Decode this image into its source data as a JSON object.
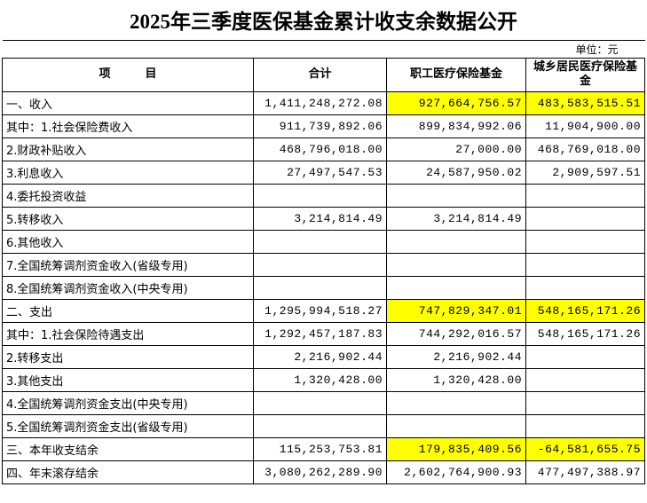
{
  "header": {
    "title": "2025年三季度医保基金累计收支余数据公开",
    "unit": "单位：元"
  },
  "table": {
    "columns": [
      "项　　　目",
      "合计",
      "职工医疗保险基金",
      "城乡居民医疗保险基金"
    ],
    "rows": [
      [
        "一、收入",
        "1,411,248,272.08",
        "927,664,756.57",
        "483,583,515.51"
      ],
      [
        "其中：1.社会保险费收入",
        "911,739,892.06",
        "899,834,992.06",
        "11,904,900.00"
      ],
      [
        "2.财政补贴收入",
        "468,796,018.00",
        "27,000.00",
        "468,769,018.00"
      ],
      [
        "3.利息收入",
        "27,497,547.53",
        "24,587,950.02",
        "2,909,597.51"
      ],
      [
        "4.委托投资收益",
        null,
        null,
        null
      ],
      [
        "5.转移收入",
        "3,214,814.49",
        "3,214,814.49",
        null
      ],
      [
        "6.其他收入",
        null,
        null,
        null
      ],
      [
        "7.全国统筹调剂资金收入(省级专用)",
        null,
        null,
        null
      ],
      [
        "8.全国统筹调剂资金收入(中央专用)",
        null,
        null,
        null
      ],
      [
        "二、支出",
        "1,295,994,518.27",
        "747,829,347.01",
        "548,165,171.26"
      ],
      [
        "其中：1.社会保险待遇支出",
        "1,292,457,187.83",
        "744,292,016.57",
        "548,165,171.26"
      ],
      [
        "2.转移支出",
        "2,216,902.44",
        "2,216,902.44",
        null
      ],
      [
        "3.其他支出",
        "1,320,428.00",
        "1,320,428.00",
        null
      ],
      [
        "4.全国统筹调剂资金支出(中央专用)",
        null,
        null,
        null
      ],
      [
        "5.全国统筹调剂资金支出(省级专用)",
        null,
        null,
        null
      ],
      [
        "三、本年收支结余",
        "115,253,753.81",
        "179,835,409.56",
        "-64,581,655.75"
      ],
      [
        "四、年末滚存结余",
        "3,080,262,289.90",
        "2,602,764,900.93",
        "477,497,388.97"
      ]
    ]
  }
}
